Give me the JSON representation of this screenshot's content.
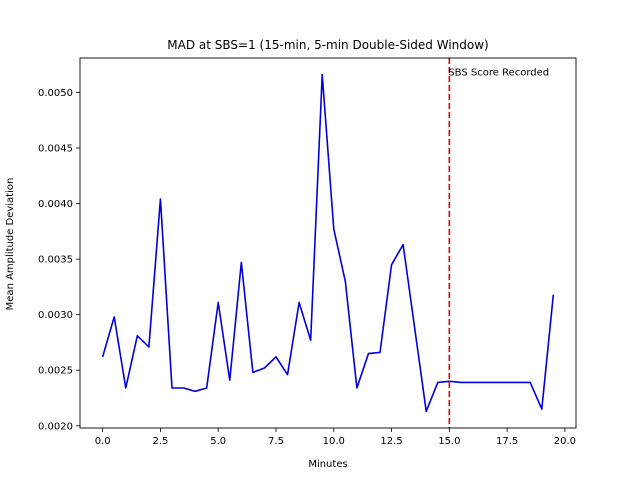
{
  "chart_data": {
    "type": "line",
    "title": "MAD at SBS=1 (15-min, 5-min Double-Sided Window)",
    "xlabel": "Minutes",
    "ylabel": "Mean Amplitude Deviation",
    "xlim": [
      -0.98,
      20.48
    ],
    "ylim": [
      0.00198,
      0.00531
    ],
    "xticks": [
      0.0,
      2.5,
      5.0,
      7.5,
      10.0,
      12.5,
      15.0,
      17.5,
      20.0
    ],
    "xtick_labels": [
      "0.0",
      "2.5",
      "5.0",
      "7.5",
      "10.0",
      "12.5",
      "15.0",
      "17.5",
      "20.0"
    ],
    "yticks": [
      0.002,
      0.0025,
      0.003,
      0.0035,
      0.004,
      0.0045,
      0.005
    ],
    "ytick_labels": [
      "0.0020",
      "0.0025",
      "0.0030",
      "0.0035",
      "0.0040",
      "0.0045",
      "0.0050"
    ],
    "grid": false,
    "series": [
      {
        "color": "#0000dd",
        "x": [
          0.0,
          0.5,
          1.0,
          1.5,
          2.0,
          2.5,
          3.0,
          3.5,
          4.0,
          4.5,
          5.0,
          5.5,
          6.0,
          6.5,
          7.0,
          7.5,
          8.0,
          8.5,
          9.0,
          9.5,
          10.0,
          10.5,
          11.0,
          11.5,
          12.0,
          12.5,
          13.0,
          13.5,
          14.0,
          14.5,
          15.0,
          15.5,
          16.0,
          16.5,
          17.0,
          17.5,
          18.0,
          18.5,
          19.0,
          19.5
        ],
        "y": [
          0.00262,
          0.00298,
          0.00234,
          0.00281,
          0.00271,
          0.00404,
          0.00234,
          0.00234,
          0.00231,
          0.00234,
          0.00311,
          0.00241,
          0.00347,
          0.00248,
          0.00252,
          0.00262,
          0.00246,
          0.00311,
          0.00277,
          0.00516,
          0.00377,
          0.0033,
          0.00234,
          0.00265,
          0.00266,
          0.00345,
          0.00363,
          0.00288,
          0.00213,
          0.00239,
          0.0024,
          0.00239,
          0.00239,
          0.00239,
          0.00239,
          0.00239,
          0.00239,
          0.00239,
          0.00215,
          0.00318
        ]
      }
    ],
    "vline": {
      "x": 15.0,
      "color": "#dd0000",
      "style": "dashed",
      "label": "SBS Score Recorded"
    }
  }
}
